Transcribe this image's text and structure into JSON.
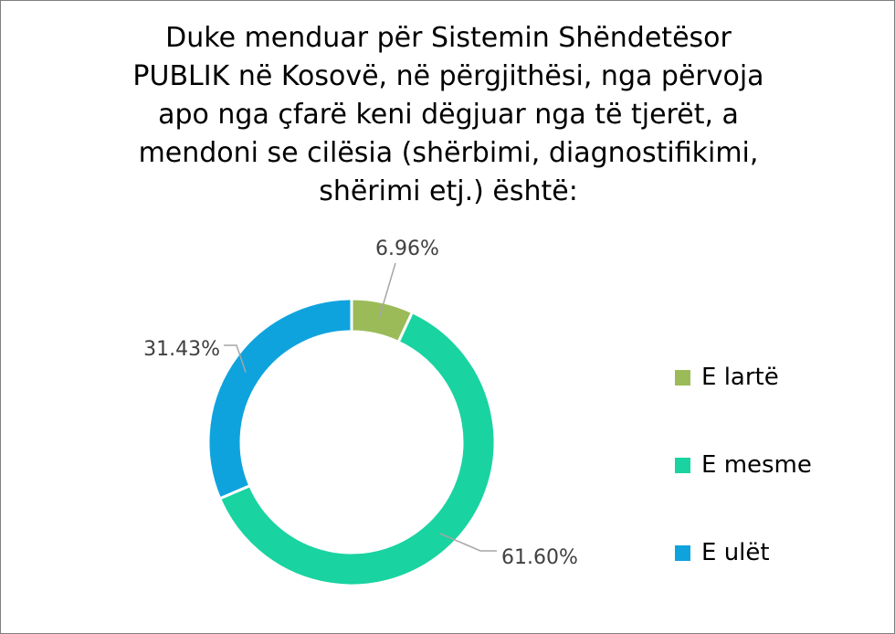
{
  "chart_data": {
    "type": "pie",
    "variant": "donut",
    "title": "Duke menduar për Sistemin Shëndetësor\nPUBLIK në Kosovë, në përgjithësi, nga përvoja\napo nga çfarë keni dëgjuar nga të tjerët, a\nmendoni se cilësia (shërbimi, diagnostifikimi,\nshërimi etj.) është:",
    "categories": [
      "E lartë",
      "E mesme",
      "E ulët"
    ],
    "values": [
      6.96,
      61.6,
      31.43
    ],
    "data_labels": [
      "6.96%",
      "61.60%",
      "31.43%"
    ],
    "colors": [
      "#9bbb59",
      "#19d3a0",
      "#0fa3de"
    ],
    "legend_position": "right"
  }
}
